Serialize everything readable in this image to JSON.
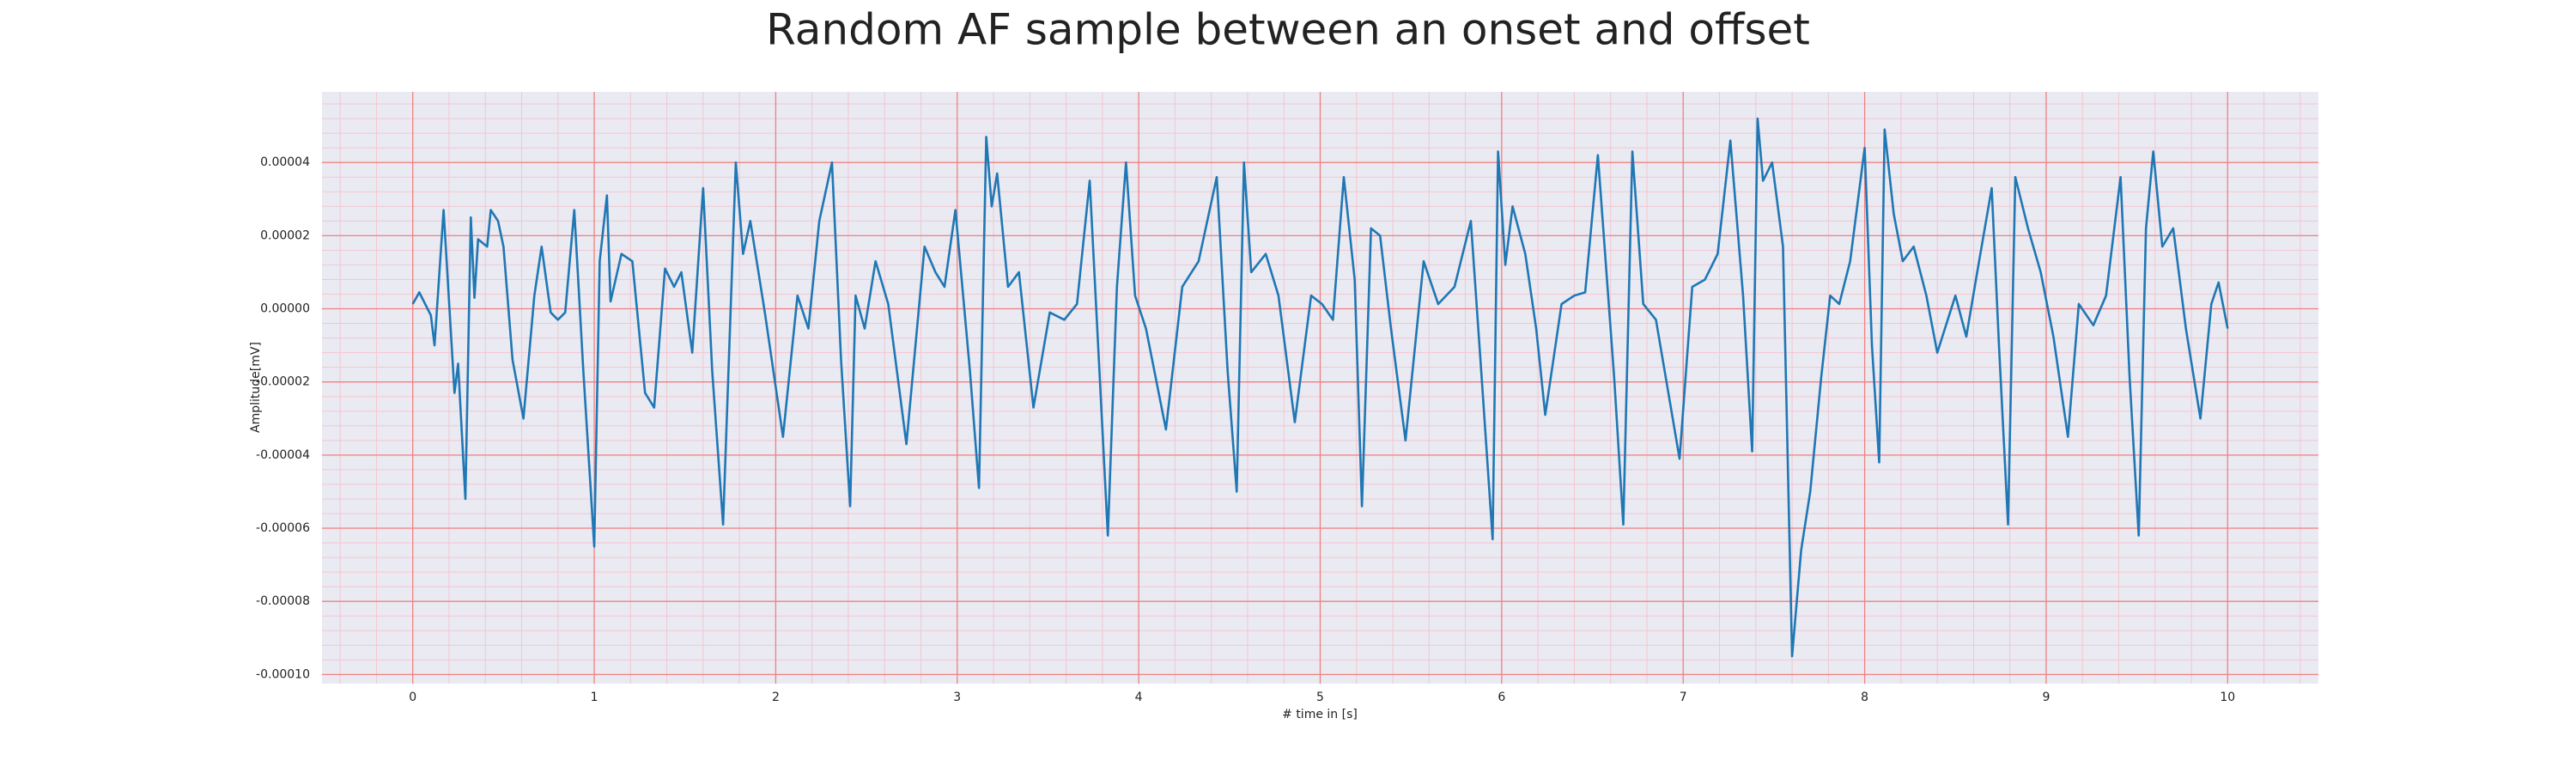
{
  "chart_data": {
    "type": "line",
    "title": "Random AF sample between an onset and offset",
    "xlabel": "# time in [s]",
    "ylabel": "Amplitude[mV]",
    "xlim": [
      -0.5,
      10.5
    ],
    "ylim": [
      -0.0001025,
      5.93e-05
    ],
    "xticks": [
      0,
      1,
      2,
      3,
      4,
      5,
      6,
      7,
      8,
      9,
      10
    ],
    "yticks": [
      {
        "value": -0.0001,
        "label": "-0.00010"
      },
      -8e-05,
      -6e-05,
      -4e-05,
      -2e-05,
      {
        "value": 0,
        "label": "0.00000"
      },
      2e-05,
      4e-05
    ],
    "grid": true,
    "minor_grid": true,
    "background": "#eaeaf2",
    "grid_color": "#f08080",
    "minor_grid_color": "#f4c6cf",
    "series": [
      {
        "color": "#1f77b4",
        "x": [
          0,
          0.036,
          0.1,
          0.12,
          0.17,
          0.23,
          0.25,
          0.29,
          0.32,
          0.34,
          0.36,
          0.41,
          0.43,
          0.47,
          0.5,
          0.55,
          0.61,
          0.67,
          0.71,
          0.76,
          0.8,
          0.84,
          0.89,
          0.94,
          1.0,
          1.03,
          1.07,
          1.09,
          1.15,
          1.21,
          1.28,
          1.33,
          1.39,
          1.44,
          1.48,
          1.54,
          1.6,
          1.65,
          1.71,
          1.78,
          1.82,
          1.86,
          1.94,
          2.04,
          2.12,
          2.18,
          2.24,
          2.31,
          2.36,
          2.41,
          2.44,
          2.49,
          2.55,
          2.62,
          2.72,
          2.82,
          2.88,
          2.93,
          2.99,
          3.07,
          3.12,
          3.16,
          3.19,
          3.22,
          3.28,
          3.34,
          3.42,
          3.51,
          3.59,
          3.66,
          3.73,
          3.83,
          3.88,
          3.93,
          3.98,
          4.04,
          4.15,
          4.24,
          4.33,
          4.43,
          4.49,
          4.54,
          4.58,
          4.62,
          4.7,
          4.77,
          4.86,
          4.95,
          5.01,
          5.07,
          5.13,
          5.19,
          5.23,
          5.28,
          5.33,
          5.39,
          5.47,
          5.57,
          5.65,
          5.74,
          5.83,
          5.89,
          5.95,
          5.98,
          6.02,
          6.06,
          6.13,
          6.19,
          6.24,
          6.33,
          6.4,
          6.46,
          6.53,
          6.62,
          6.67,
          6.72,
          6.78,
          6.85,
          6.98,
          7.05,
          7.12,
          7.19,
          7.26,
          7.33,
          7.38,
          7.41,
          7.44,
          7.49,
          7.55,
          7.6,
          7.65,
          7.7,
          7.76,
          7.81,
          7.86,
          7.92,
          8.0,
          8.04,
          8.08,
          8.11,
          8.16,
          8.21,
          8.27,
          8.34,
          8.4,
          8.5,
          8.56,
          8.62,
          8.7,
          8.74,
          8.79,
          8.83,
          8.9,
          8.97,
          9.04,
          9.12,
          9.18,
          9.26,
          9.33,
          9.41,
          9.46,
          9.51,
          9.55,
          9.59,
          9.64,
          9.7,
          9.77,
          9.85,
          9.91,
          9.95,
          10.0
        ],
        "values": [
          1.3e-06,
          4.5e-06,
          -1.8e-06,
          -1e-05,
          2.7e-05,
          -2.3e-05,
          -1.5e-05,
          -5.2e-05,
          2.5e-05,
          3e-06,
          1.9e-05,
          1.7e-05,
          2.7e-05,
          2.4e-05,
          1.7e-05,
          -1.4e-05,
          -3e-05,
          3.6e-06,
          1.7e-05,
          -1e-06,
          -3e-06,
          -1e-06,
          2.7e-05,
          -1.7e-05,
          -6.5e-05,
          1.3e-05,
          3.1e-05,
          2e-06,
          1.5e-05,
          1.3e-05,
          -2.3e-05,
          -2.7e-05,
          1.1e-05,
          6e-06,
          1e-05,
          -1.2e-05,
          3.3e-05,
          -1.7e-05,
          -5.9e-05,
          4e-05,
          1.5e-05,
          2.4e-05,
          -1e-06,
          -3.5e-05,
          3.6e-06,
          -5.4e-06,
          2.4e-05,
          4e-05,
          -1.4e-05,
          -5.4e-05,
          3.6e-06,
          -5.4e-06,
          1.3e-05,
          1.3e-06,
          -3.7e-05,
          1.7e-05,
          1e-05,
          6e-06,
          2.7e-05,
          -1.7e-05,
          -4.9e-05,
          4.7e-05,
          2.8e-05,
          3.7e-05,
          6e-06,
          1e-05,
          -2.7e-05,
          -1e-06,
          -3e-06,
          1.3e-06,
          3.5e-05,
          -6.2e-05,
          6e-06,
          4e-05,
          3.6e-06,
          -5.4e-06,
          -3.3e-05,
          6e-06,
          1.3e-05,
          3.6e-05,
          -1.7e-05,
          -5e-05,
          4e-05,
          1e-05,
          1.5e-05,
          3.6e-06,
          -3.1e-05,
          3.6e-06,
          1.3e-06,
          -3e-06,
          3.6e-05,
          8e-06,
          -5.4e-05,
          2.2e-05,
          2e-05,
          -5.4e-06,
          -3.6e-05,
          1.3e-05,
          1.3e-06,
          6e-06,
          2.4e-05,
          -1.9e-05,
          -6.3e-05,
          4.3e-05,
          1.2e-05,
          2.8e-05,
          1.5e-05,
          -5.4e-06,
          -2.9e-05,
          1.3e-06,
          3.6e-06,
          4.5e-06,
          4.2e-05,
          -1.9e-05,
          -5.9e-05,
          4.3e-05,
          1.3e-06,
          -3e-06,
          -4.1e-05,
          6e-06,
          8e-06,
          1.5e-05,
          4.6e-05,
          3.6e-06,
          -3.9e-05,
          5.2e-05,
          3.5e-05,
          4e-05,
          1.7e-05,
          -9.5e-05,
          -6.6e-05,
          -5e-05,
          -1.9e-05,
          3.6e-06,
          1.3e-06,
          1.3e-05,
          4.4e-05,
          -1e-05,
          -4.2e-05,
          4.9e-05,
          2.6e-05,
          1.3e-05,
          1.7e-05,
          3.6e-06,
          -1.2e-05,
          3.6e-06,
          -7.6e-06,
          1e-05,
          3.3e-05,
          -1e-05,
          -5.9e-05,
          3.6e-05,
          2.2e-05,
          1e-05,
          -7.6e-06,
          -3.5e-05,
          1.3e-06,
          -4.5e-06,
          3.6e-06,
          3.6e-05,
          -1.9e-05,
          -6.2e-05,
          2.2e-05,
          4.3e-05,
          1.7e-05,
          2.2e-05,
          -5.4e-06,
          -3e-05,
          1.3e-06,
          7.2e-06,
          -5.4e-06
        ]
      }
    ]
  }
}
